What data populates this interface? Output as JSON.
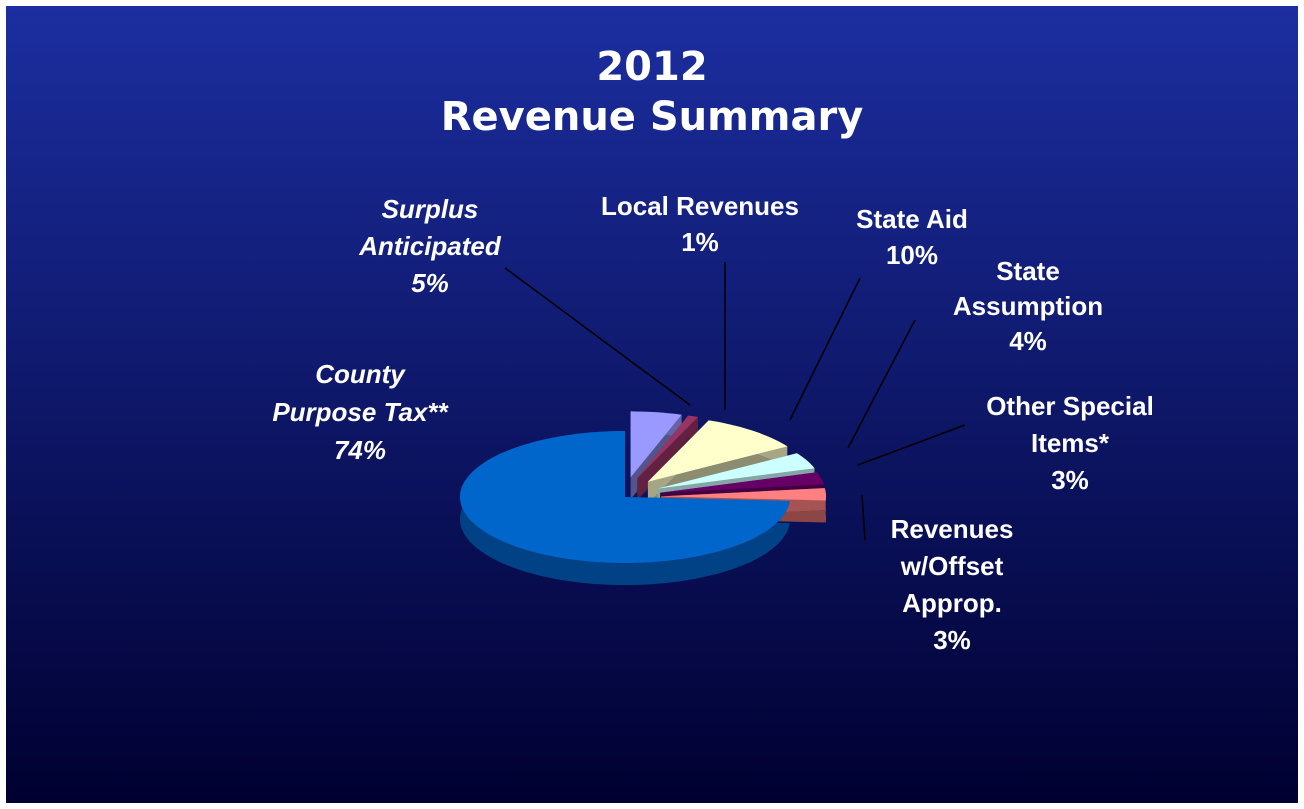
{
  "chart_data": {
    "type": "pie",
    "title": "2012\nRevenue Summary",
    "categories": [
      "Surplus\nAnticipated",
      "Local Revenues",
      "State Aid",
      "State\nAssumption",
      "Other Special\nItems*",
      "Revenues\nw/Offset\nApprop.",
      "County\nPurpose Tax**"
    ],
    "values": [
      5,
      1,
      10,
      4,
      3,
      3,
      74
    ],
    "value_labels": [
      "5%",
      "1%",
      "10%",
      "4%",
      "3%",
      "3%",
      "74%"
    ],
    "colors": [
      "#9999ff",
      "#993366",
      "#ffffcc",
      "#ccffff",
      "#660066",
      "#ff8080",
      "#0066cc"
    ]
  }
}
